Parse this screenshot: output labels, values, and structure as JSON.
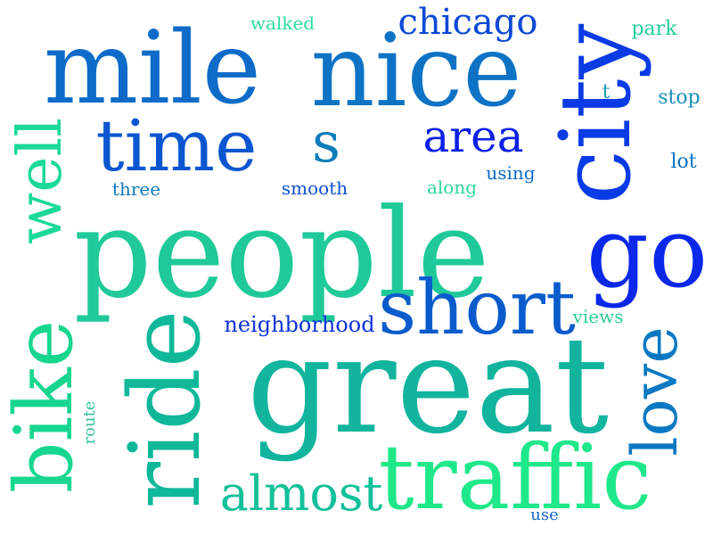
{
  "words": [
    {
      "text": "people",
      "color": "#20c99a"
    },
    {
      "text": "great",
      "color": "#12b49e"
    },
    {
      "text": "mile",
      "color": "#0e6bc8"
    },
    {
      "text": "nice",
      "color": "#0e73c4"
    },
    {
      "text": "city",
      "color": "#0a3be4"
    },
    {
      "text": "time",
      "color": "#0b56d0"
    },
    {
      "text": "ride",
      "color": "#10b899"
    },
    {
      "text": "traffic",
      "color": "#1ee889"
    },
    {
      "text": "go",
      "color": "#0a28e8"
    },
    {
      "text": "short",
      "color": "#0a5ccc"
    },
    {
      "text": "bike",
      "color": "#18d68e"
    },
    {
      "text": "love",
      "color": "#0b78c2"
    },
    {
      "text": "well",
      "color": "#1bd996"
    },
    {
      "text": "almost",
      "color": "#14c09a"
    },
    {
      "text": "area",
      "color": "#0a20e6"
    },
    {
      "text": "chicago",
      "color": "#0a48d6"
    },
    {
      "text": "s",
      "color": "#0c7dbb"
    },
    {
      "text": "neighborhood",
      "color": "#0d33d8"
    },
    {
      "text": "walked",
      "color": "#2adba0"
    },
    {
      "text": "park",
      "color": "#22cf9c"
    },
    {
      "text": "stop",
      "color": "#1a90b8"
    },
    {
      "text": "t",
      "color": "#1c9ab0"
    },
    {
      "text": "lot",
      "color": "#0e72c0"
    },
    {
      "text": "using",
      "color": "#0e6ac6"
    },
    {
      "text": "three",
      "color": "#0f78bd"
    },
    {
      "text": "smooth",
      "color": "#0c4fd2"
    },
    {
      "text": "along",
      "color": "#2bd7a0"
    },
    {
      "text": "views",
      "color": "#2ccc9a"
    },
    {
      "text": "route",
      "color": "#3ac5a2"
    },
    {
      "text": "use",
      "color": "#1868c2"
    }
  ]
}
